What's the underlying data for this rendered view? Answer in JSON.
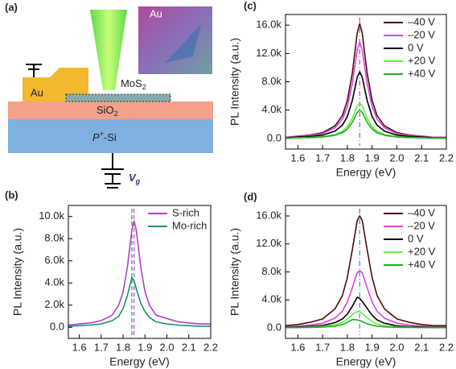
{
  "diagram": {
    "panel": "(a)",
    "au": "Au",
    "mos2": {
      "base": "MoS",
      "sub": "2"
    },
    "sio2": {
      "base": "SiO",
      "sub": "2"
    },
    "si": {
      "base": "P",
      "sup": "+",
      "rest": "-Si"
    },
    "vg": {
      "base": "V",
      "sub": "g"
    },
    "inset": "Au"
  },
  "chart_data": [
    {
      "type": "line",
      "panel": "(b)",
      "xlabel": "Energy (eV)",
      "ylabel": "PL Intensity (a.u.)",
      "x": [
        1.55,
        1.6,
        1.65,
        1.7,
        1.75,
        1.78,
        1.8,
        1.82,
        1.84,
        1.85,
        1.86,
        1.88,
        1.9,
        1.92,
        1.95,
        2.0,
        2.05,
        2.1,
        2.15,
        2.2
      ],
      "xlim": [
        1.55,
        2.2
      ],
      "xticks": [
        1.6,
        1.7,
        1.8,
        1.9,
        {
          "value": 2,
          "label": "2.0"
        },
        2.1,
        2.2
      ],
      "ylim": [
        -1000,
        11000
      ],
      "yticks": [
        {
          "value": 0,
          "label": "0.0"
        },
        {
          "value": 2000,
          "label": "2.0k"
        },
        {
          "value": 4000,
          "label": "4.0k"
        },
        {
          "value": 6000,
          "label": "6.0k"
        },
        {
          "value": 8000,
          "label": "8.0k"
        },
        {
          "value": 10000,
          "label": "10.0k"
        }
      ],
      "legend": "upper right",
      "vlines": [
        {
          "x": 1.85,
          "color": "#d040d8",
          "style": "dashed"
        },
        {
          "x": 1.84,
          "color": "#1a9070",
          "style": "dashed"
        }
      ],
      "series": [
        {
          "name": "S-rich",
          "color": "#b040c8",
          "values": [
            200,
            300,
            400,
            600,
            1100,
            2000,
            3200,
            5500,
            8800,
            9600,
            8800,
            5500,
            3200,
            2000,
            1100,
            800,
            500,
            400,
            300,
            300
          ]
        },
        {
          "name": "Mo-rich",
          "color": "#1a9070",
          "values": [
            100,
            150,
            200,
            300,
            600,
            1000,
            1700,
            2900,
            4500,
            4200,
            3500,
            2200,
            1400,
            900,
            500,
            300,
            200,
            150,
            100,
            100
          ]
        }
      ]
    },
    {
      "type": "line",
      "panel": "(c)",
      "xlabel": "Energy (eV)",
      "ylabel": "PL Intensity (a.u.)",
      "x": [
        1.55,
        1.6,
        1.65,
        1.7,
        1.75,
        1.78,
        1.8,
        1.82,
        1.84,
        1.85,
        1.86,
        1.88,
        1.9,
        1.92,
        1.95,
        2.0,
        2.05,
        2.1,
        2.15,
        2.2
      ],
      "xlim": [
        1.55,
        2.2
      ],
      "xticks": [
        1.6,
        1.7,
        1.8,
        1.9,
        {
          "value": 2,
          "label": "2.0"
        },
        2.1,
        2.2
      ],
      "ylim": [
        -1500,
        17500
      ],
      "yticks": [
        {
          "value": 0,
          "label": "0.0"
        },
        {
          "value": 4000,
          "label": "4.0k"
        },
        {
          "value": 8000,
          "label": "8.0k"
        },
        {
          "value": 12000,
          "label": "12.0k"
        },
        {
          "value": 16000,
          "label": "16.0k"
        }
      ],
      "legend": "upper right",
      "vlines": [
        {
          "x": 1.85,
          "color": "#c040d0",
          "style": "dashdot"
        }
      ],
      "series": [
        {
          "name": "–40 V",
          "color": "#4a0c0c",
          "values": [
            160,
            320,
            490,
            810,
            1780,
            3240,
            5350,
            9230,
            14900,
            16200,
            14900,
            9230,
            5350,
            3240,
            1780,
            810,
            490,
            320,
            160,
            160
          ]
        },
        {
          "name": "–20 V",
          "color": "#e040e0",
          "values": [
            140,
            270,
            410,
            680,
            1500,
            2720,
            4490,
            7750,
            12510,
            13600,
            12510,
            7750,
            4490,
            2720,
            1500,
            680,
            410,
            270,
            140,
            140
          ]
        },
        {
          "name": "0 V",
          "color": "#000000",
          "values": [
            90,
            190,
            280,
            470,
            1030,
            1880,
            3100,
            5360,
            8650,
            9400,
            8650,
            5360,
            3100,
            1880,
            1030,
            470,
            280,
            190,
            90,
            90
          ]
        },
        {
          "name": "+20 V",
          "color": "#66ee44",
          "values": [
            50,
            100,
            150,
            250,
            550,
            1000,
            1650,
            2850,
            4600,
            5000,
            4600,
            2850,
            1650,
            1000,
            550,
            250,
            150,
            100,
            50,
            50
          ]
        },
        {
          "name": "+40 V",
          "color": "#22aa22",
          "values": [
            40,
            80,
            120,
            200,
            440,
            800,
            1320,
            2280,
            3680,
            4000,
            3680,
            2280,
            1320,
            800,
            440,
            200,
            120,
            80,
            40,
            40
          ]
        }
      ]
    },
    {
      "type": "line",
      "panel": "(d)",
      "xlabel": "Energy (eV)",
      "ylabel": "PL Intensity (a.u.)",
      "x": [
        1.55,
        1.6,
        1.65,
        1.7,
        1.75,
        1.78,
        1.8,
        1.82,
        1.84,
        1.85,
        1.86,
        1.88,
        1.9,
        1.92,
        1.95,
        2.0,
        2.05,
        2.1,
        2.15,
        2.2
      ],
      "xlim": [
        1.55,
        2.2
      ],
      "xticks": [
        1.6,
        1.7,
        1.8,
        1.9,
        {
          "value": 2,
          "label": "2.0"
        },
        2.1,
        2.2
      ],
      "ylim": [
        -1500,
        17500
      ],
      "yticks": [
        {
          "value": 0,
          "label": "0.0"
        },
        {
          "value": 4000,
          "label": "4.0k"
        },
        {
          "value": 8000,
          "label": "8.0k"
        },
        {
          "value": 12000,
          "label": "12.0k"
        },
        {
          "value": 16000,
          "label": "16.0k"
        }
      ],
      "legend": "upper right",
      "vlines": [
        {
          "x": 1.85,
          "color": "#3388dd",
          "style": "dashdot"
        }
      ],
      "series": [
        {
          "name": "–40 V",
          "color": "#4a0c0c",
          "values": [
            320,
            480,
            800,
            1280,
            2720,
            4640,
            7200,
            11200,
            15360,
            16000,
            15360,
            11200,
            7200,
            4640,
            2720,
            1280,
            800,
            480,
            320,
            320
          ]
        },
        {
          "name": "–20 V",
          "color": "#e040e0",
          "values": [
            160,
            250,
            410,
            660,
            1390,
            2380,
            3690,
            5740,
            7870,
            8200,
            7870,
            5740,
            3690,
            2380,
            1390,
            660,
            410,
            250,
            160,
            160
          ]
        },
        {
          "name": "0 V",
          "color": "#000000",
          "values": [
            90,
            130,
            220,
            350,
            750,
            1280,
            1980,
            3080,
            4400,
            4220,
            3800,
            2800,
            1800,
            1150,
            650,
            300,
            180,
            130,
            90,
            90
          ]
        },
        {
          "name": "+20 V",
          "color": "#66ee44",
          "values": [
            50,
            70,
            120,
            200,
            450,
            800,
            1250,
            1900,
            2350,
            2300,
            2050,
            1450,
            900,
            560,
            300,
            150,
            90,
            60,
            50,
            50
          ]
        },
        {
          "name": "+40 V",
          "color": "#22aa22",
          "values": [
            30,
            40,
            70,
            120,
            250,
            480,
            800,
            1200,
            1150,
            1050,
            900,
            600,
            380,
            250,
            150,
            80,
            50,
            40,
            30,
            30
          ]
        }
      ]
    }
  ]
}
